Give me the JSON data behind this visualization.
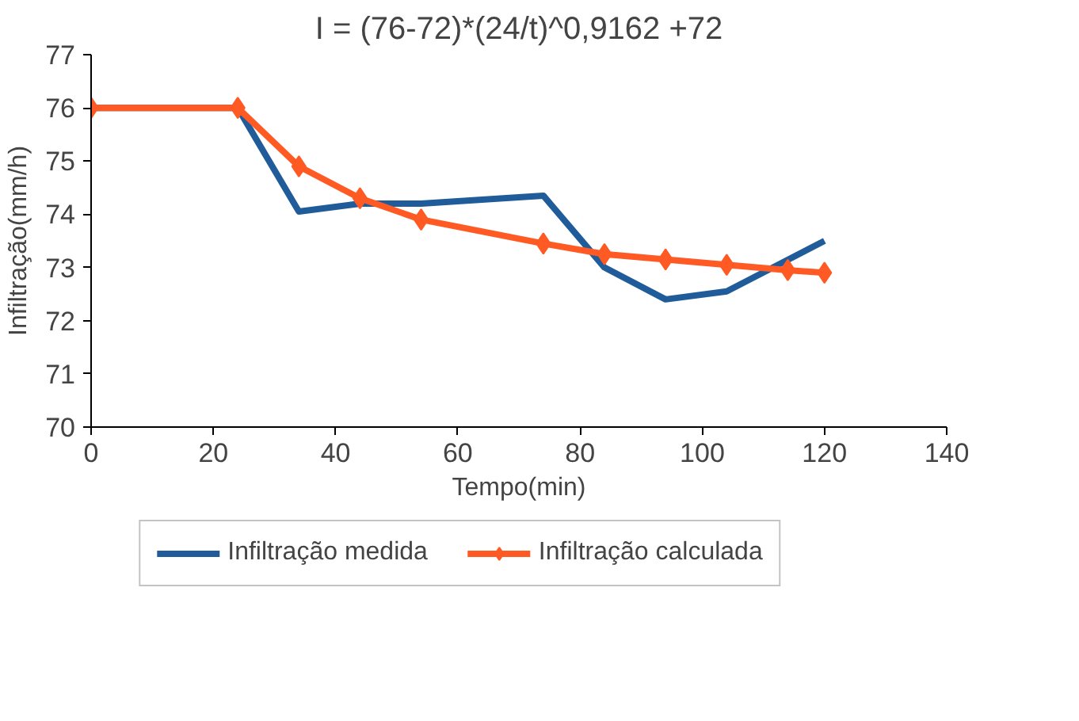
{
  "chart_data": {
    "type": "line",
    "title": "I = (76-72)*(24/t)^0,9162 +72",
    "xlabel": "Tempo(min)",
    "ylabel": "Infiltração(mm/h)",
    "xlim": [
      0,
      140
    ],
    "xticks": [
      0,
      20,
      40,
      60,
      80,
      100,
      120,
      140
    ],
    "ylim": [
      70,
      77
    ],
    "yticks": [
      70,
      71,
      72,
      73,
      74,
      75,
      76,
      77
    ],
    "grid": false,
    "legend": "bottom",
    "line_style": "solid",
    "series": [
      {
        "name": "Infiltração medida",
        "color": "#1f5c99",
        "marker": "none",
        "x": [
          0,
          24,
          34,
          44,
          54,
          74,
          84,
          94,
          104,
          120
        ],
        "values": [
          76,
          76,
          74.05,
          74.2,
          74.2,
          74.35,
          73.0,
          72.4,
          72.55,
          73.5
        ]
      },
      {
        "name": "Infiltração calculada",
        "color": "#ff5a24",
        "marker": "diamond",
        "x": [
          0,
          24,
          34,
          44,
          54,
          74,
          84,
          94,
          104,
          114,
          120
        ],
        "values": [
          76,
          76,
          74.9,
          74.3,
          73.9,
          73.45,
          73.25,
          73.15,
          73.05,
          72.95,
          72.9
        ]
      }
    ]
  }
}
